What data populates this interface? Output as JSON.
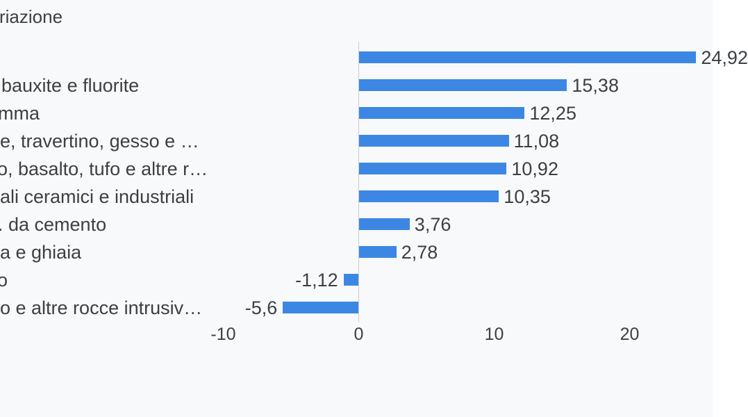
{
  "page": {
    "background": "#f8f9fa"
  },
  "chart_data": {
    "type": "bar",
    "orientation": "horizontal",
    "title": "riazione",
    "categories": [
      "",
      "bauxite e fluorite",
      "mma",
      "e, travertino, gesso e …",
      "o, basalto, tufo e altre r…",
      "ali ceramici e industriali",
      ". da cemento",
      "a e ghiaia",
      "o",
      "o e altre rocce intrusiv…"
    ],
    "values": [
      24.92,
      15.38,
      12.25,
      11.08,
      10.92,
      10.35,
      3.76,
      2.78,
      -1.12,
      -5.6
    ],
    "value_labels": [
      "24,92",
      "15,38",
      "12,25",
      "11,08",
      "10,92",
      "10,35",
      "3,76",
      "2,78",
      "-1,12",
      "-5,6"
    ],
    "x_axis": {
      "ticks": [
        -10,
        0,
        10,
        20
      ],
      "tick_labels": [
        "-10",
        "0",
        "10",
        "20"
      ]
    },
    "grid": false,
    "legend": "none",
    "colors": {
      "bar": "#3c87e4",
      "text": "#3c4043",
      "axis_line": "#cccccc"
    }
  }
}
